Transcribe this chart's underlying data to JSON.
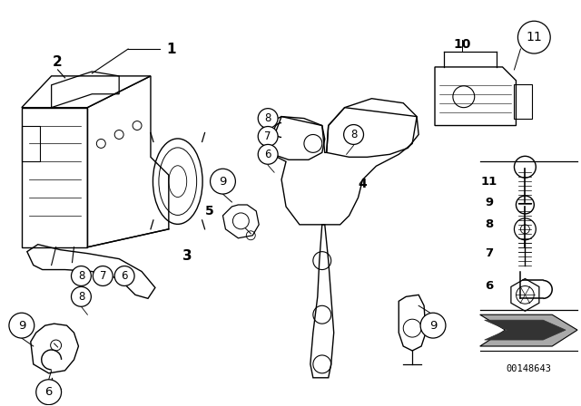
{
  "bg_color": "#ffffff",
  "fig_width": 6.4,
  "fig_height": 4.48,
  "dpi": 100,
  "part_number": "00148643",
  "line_color": "#000000",
  "text_color": "#000000"
}
